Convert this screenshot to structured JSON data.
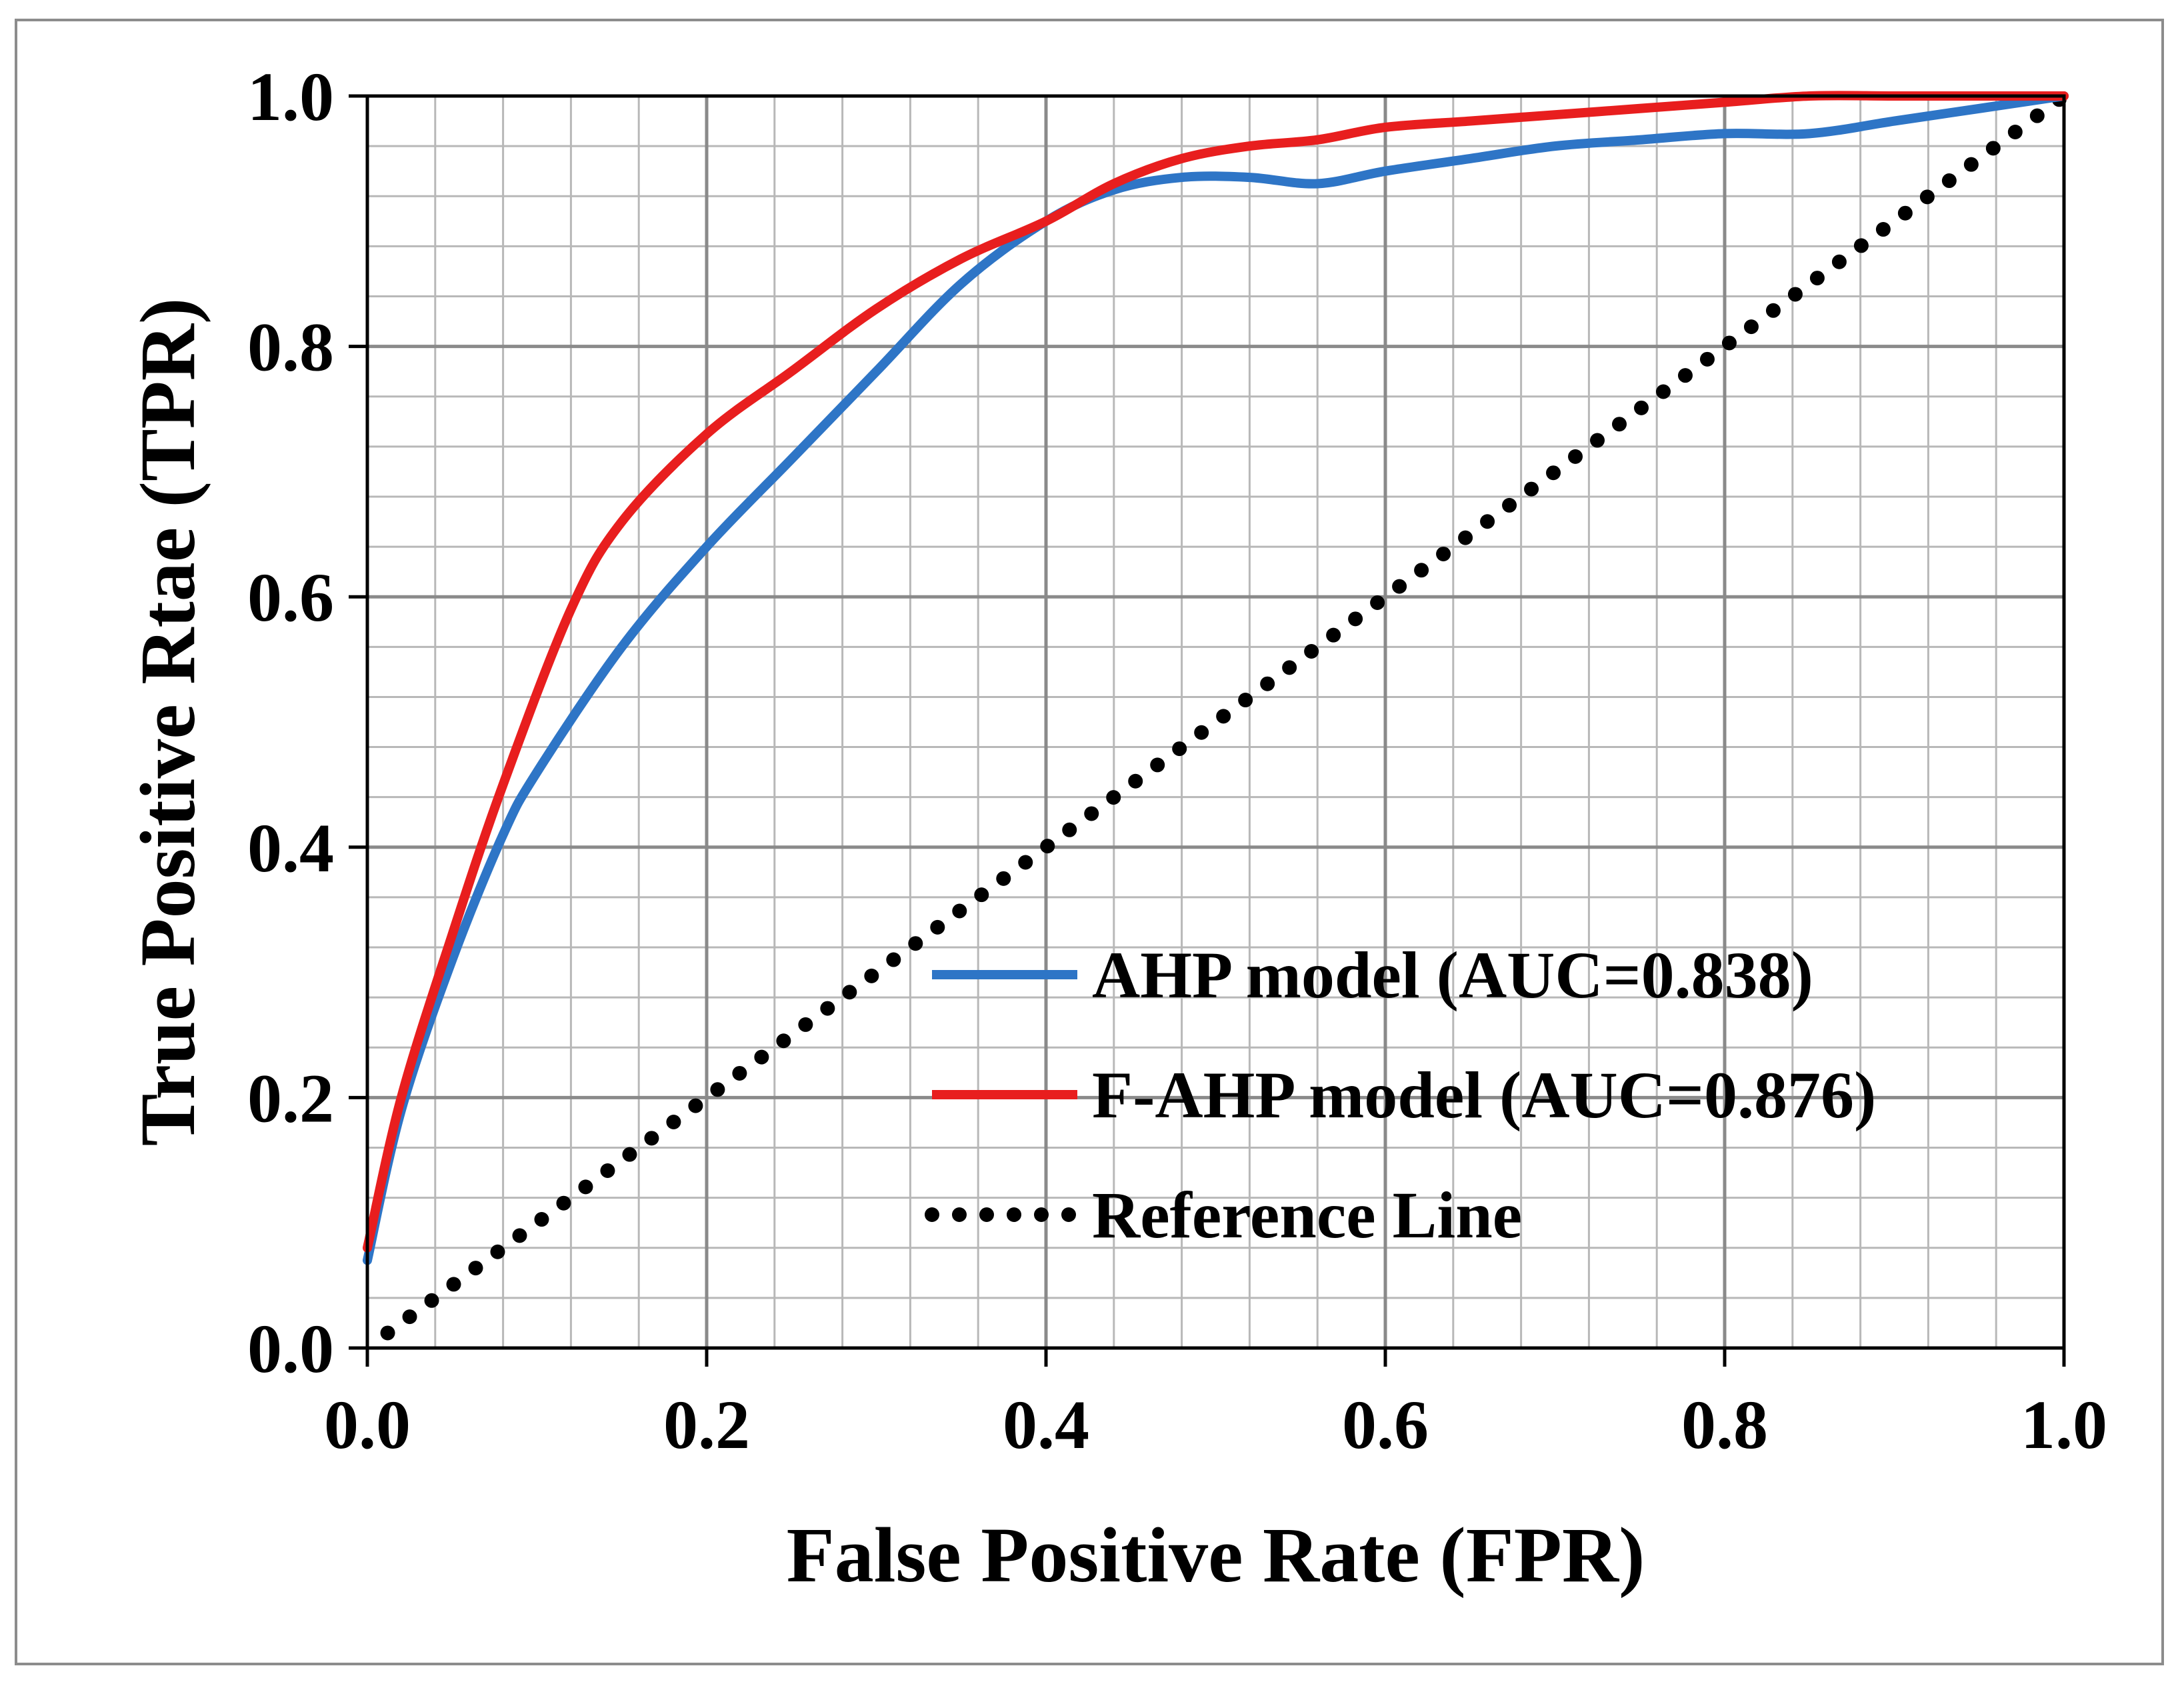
{
  "chart_data": {
    "type": "line",
    "title": "",
    "xlabel": "False Positive Rate (FPR)",
    "ylabel": "True Positive Rtae (TPR)",
    "xlim": [
      0,
      1
    ],
    "ylim": [
      0,
      1
    ],
    "xticks": [
      0,
      0.2,
      0.4,
      0.6,
      0.8,
      1.0
    ],
    "yticks": [
      0,
      0.2,
      0.4,
      0.6,
      0.8,
      1.0
    ],
    "xtick_labels": [
      "0.0",
      "0.2",
      "0.4",
      "0.6",
      "0.8",
      "1.0"
    ],
    "ytick_labels": [
      "0.0",
      "0.2",
      "0.4",
      "0.6",
      "0.8",
      "1.0"
    ],
    "minor_grid_step": 0.04,
    "major_grid_step": 0.2,
    "grid": true,
    "legend_position": "lower-right",
    "series": [
      {
        "name": "AHP model (AUC=0.838)",
        "color": "#2e75c6",
        "style": "solid",
        "x": [
          0,
          0.02,
          0.05,
          0.08,
          0.1,
          0.15,
          0.2,
          0.25,
          0.3,
          0.35,
          0.4,
          0.44,
          0.48,
          0.52,
          0.56,
          0.6,
          0.65,
          0.7,
          0.75,
          0.8,
          0.85,
          0.9,
          0.95,
          1.0
        ],
        "y": [
          0.07,
          0.19,
          0.31,
          0.41,
          0.46,
          0.56,
          0.64,
          0.71,
          0.78,
          0.85,
          0.9,
          0.925,
          0.935,
          0.935,
          0.93,
          0.94,
          0.95,
          0.96,
          0.965,
          0.97,
          0.97,
          0.98,
          0.99,
          1.0
        ]
      },
      {
        "name": "F-AHP model (AUC=0.876)",
        "color": "#e81e1e",
        "style": "solid",
        "x": [
          0,
          0.02,
          0.05,
          0.08,
          0.12,
          0.15,
          0.2,
          0.25,
          0.3,
          0.35,
          0.4,
          0.44,
          0.48,
          0.52,
          0.56,
          0.6,
          0.65,
          0.7,
          0.75,
          0.8,
          0.85,
          0.9,
          0.95,
          1.0
        ],
        "y": [
          0.08,
          0.2,
          0.33,
          0.45,
          0.59,
          0.66,
          0.73,
          0.78,
          0.83,
          0.87,
          0.9,
          0.93,
          0.95,
          0.96,
          0.965,
          0.975,
          0.98,
          0.985,
          0.99,
          0.995,
          1.0,
          1.0,
          1.0,
          1.0
        ]
      },
      {
        "name": "Reference Line",
        "color": "#000000",
        "style": "dotted",
        "x": [
          0,
          1
        ],
        "y": [
          0,
          1
        ]
      }
    ]
  }
}
